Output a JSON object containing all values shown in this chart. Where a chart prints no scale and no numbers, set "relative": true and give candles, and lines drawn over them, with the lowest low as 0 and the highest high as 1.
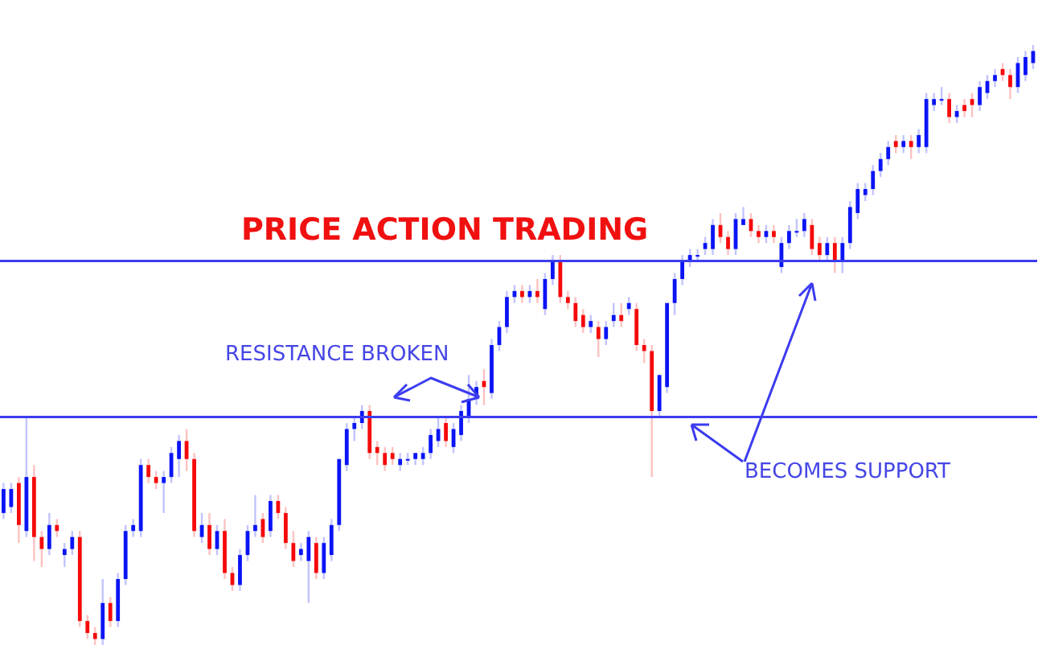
{
  "chart_data": {
    "type": "candlestick",
    "title": "PRICE ACTION TRADING",
    "relative": true,
    "tick_labels": false,
    "grid": false,
    "legend": false,
    "annotations": [
      "RESISTANCE BROKEN",
      "BECOMES SUPPORT"
    ],
    "ref_lines": [
      {
        "axis": "y",
        "value": 0.38,
        "color": "#3c3cf0"
      },
      {
        "axis": "y",
        "value": 0.64,
        "color": "#3c3cf0"
      }
    ],
    "categories": [
      null,
      null,
      null,
      null,
      null,
      null,
      null,
      null,
      null,
      null,
      null,
      null,
      null,
      null,
      null,
      null,
      null,
      null,
      null,
      null,
      null,
      null,
      null,
      null,
      null,
      null,
      null,
      null,
      null,
      null,
      null,
      null,
      null,
      null,
      null,
      null,
      null,
      null,
      null,
      null,
      null,
      null,
      null,
      null,
      null,
      null,
      null,
      null,
      null,
      null,
      null,
      null,
      null,
      null,
      null,
      null,
      null,
      null,
      null,
      null,
      null,
      null,
      null,
      null,
      null,
      null,
      null,
      null,
      null,
      null,
      null,
      null,
      null,
      null,
      null,
      null,
      null,
      null,
      null,
      null,
      null,
      null,
      null,
      null,
      null,
      null,
      null,
      null,
      null,
      null,
      null,
      null,
      null,
      null,
      null,
      null,
      null,
      null,
      null,
      null,
      null,
      null,
      null,
      null,
      null,
      null,
      null,
      null,
      null,
      null,
      null,
      null,
      null,
      null,
      null,
      null,
      null,
      null,
      null,
      null,
      null,
      null,
      null,
      null,
      null,
      null,
      null,
      null,
      null,
      null,
      null,
      null,
      null,
      null,
      null,
      null
    ],
    "ohlc": [
      [
        0.22,
        0.27,
        0.21,
        0.26
      ],
      [
        0.23,
        0.27,
        0.22,
        0.26
      ],
      [
        0.27,
        0.28,
        0.17,
        0.2
      ],
      [
        0.19,
        0.38,
        0.18,
        0.28
      ],
      [
        0.28,
        0.3,
        0.14,
        0.18
      ],
      [
        0.18,
        0.19,
        0.13,
        0.16
      ],
      [
        0.16,
        0.22,
        0.15,
        0.2
      ],
      [
        0.2,
        0.21,
        0.18,
        0.19
      ],
      [
        0.15,
        0.17,
        0.13,
        0.16
      ],
      [
        0.16,
        0.19,
        0.15,
        0.18
      ],
      [
        0.18,
        0.19,
        0.03,
        0.04
      ],
      [
        0.04,
        0.05,
        0.01,
        0.02
      ],
      [
        0.02,
        0.03,
        0.0,
        0.01
      ],
      [
        0.01,
        0.11,
        0.0,
        0.07
      ],
      [
        0.07,
        0.08,
        0.03,
        0.04
      ],
      [
        0.04,
        0.12,
        0.03,
        0.11
      ],
      [
        0.11,
        0.2,
        0.1,
        0.19
      ],
      [
        0.19,
        0.21,
        0.18,
        0.2
      ],
      [
        0.19,
        0.31,
        0.18,
        0.3
      ],
      [
        0.3,
        0.31,
        0.27,
        0.28
      ],
      [
        0.28,
        0.29,
        0.26,
        0.27
      ],
      [
        0.27,
        0.29,
        0.22,
        0.28
      ],
      [
        0.28,
        0.33,
        0.27,
        0.32
      ],
      [
        0.31,
        0.35,
        0.28,
        0.34
      ],
      [
        0.34,
        0.36,
        0.29,
        0.31
      ],
      [
        0.31,
        0.32,
        0.18,
        0.19
      ],
      [
        0.18,
        0.22,
        0.17,
        0.2
      ],
      [
        0.2,
        0.22,
        0.15,
        0.16
      ],
      [
        0.16,
        0.2,
        0.15,
        0.19
      ],
      [
        0.19,
        0.21,
        0.11,
        0.12
      ],
      [
        0.12,
        0.13,
        0.09,
        0.1
      ],
      [
        0.1,
        0.16,
        0.09,
        0.15
      ],
      [
        0.15,
        0.2,
        0.14,
        0.19
      ],
      [
        0.19,
        0.25,
        0.18,
        0.2
      ],
      [
        0.21,
        0.22,
        0.17,
        0.18
      ],
      [
        0.19,
        0.25,
        0.18,
        0.24
      ],
      [
        0.24,
        0.25,
        0.21,
        0.22
      ],
      [
        0.22,
        0.23,
        0.16,
        0.17
      ],
      [
        0.17,
        0.19,
        0.13,
        0.14
      ],
      [
        0.15,
        0.17,
        0.14,
        0.16
      ],
      [
        0.14,
        0.19,
        0.07,
        0.18
      ],
      [
        0.17,
        0.18,
        0.11,
        0.12
      ],
      [
        0.12,
        0.18,
        0.11,
        0.17
      ],
      [
        0.15,
        0.21,
        0.14,
        0.2
      ],
      [
        0.2,
        0.31,
        0.19,
        0.31
      ],
      [
        0.3,
        0.37,
        0.29,
        0.36
      ],
      [
        0.36,
        0.38,
        0.34,
        0.37
      ],
      [
        0.37,
        0.4,
        0.36,
        0.39
      ],
      [
        0.39,
        0.4,
        0.31,
        0.32
      ],
      [
        0.33,
        0.34,
        0.3,
        0.32
      ],
      [
        0.32,
        0.33,
        0.29,
        0.3
      ],
      [
        0.32,
        0.33,
        0.3,
        0.31
      ],
      [
        0.3,
        0.32,
        0.29,
        0.31
      ],
      [
        0.31,
        0.32,
        0.3,
        0.31
      ],
      [
        0.31,
        0.32,
        0.3,
        0.32
      ],
      [
        0.31,
        0.33,
        0.3,
        0.32
      ],
      [
        0.32,
        0.36,
        0.31,
        0.35
      ],
      [
        0.34,
        0.38,
        0.33,
        0.36
      ],
      [
        0.37,
        0.38,
        0.33,
        0.34
      ],
      [
        0.33,
        0.37,
        0.32,
        0.36
      ],
      [
        0.35,
        0.4,
        0.34,
        0.39
      ],
      [
        0.38,
        0.45,
        0.37,
        0.41
      ],
      [
        0.41,
        0.44,
        0.4,
        0.43
      ],
      [
        0.44,
        0.46,
        0.4,
        0.43
      ],
      [
        0.42,
        0.51,
        0.41,
        0.5
      ],
      [
        0.5,
        0.54,
        0.49,
        0.53
      ],
      [
        0.53,
        0.59,
        0.52,
        0.58
      ],
      [
        0.58,
        0.6,
        0.57,
        0.59
      ],
      [
        0.59,
        0.6,
        0.57,
        0.58
      ],
      [
        0.58,
        0.6,
        0.57,
        0.59
      ],
      [
        0.59,
        0.61,
        0.57,
        0.58
      ],
      [
        0.56,
        0.62,
        0.55,
        0.61
      ],
      [
        0.61,
        0.65,
        0.6,
        0.64
      ],
      [
        0.64,
        0.65,
        0.57,
        0.58
      ],
      [
        0.58,
        0.59,
        0.56,
        0.57
      ],
      [
        0.57,
        0.58,
        0.53,
        0.54
      ],
      [
        0.55,
        0.56,
        0.52,
        0.53
      ],
      [
        0.53,
        0.55,
        0.52,
        0.54
      ],
      [
        0.53,
        0.54,
        0.48,
        0.51
      ],
      [
        0.51,
        0.54,
        0.5,
        0.53
      ],
      [
        0.54,
        0.57,
        0.53,
        0.55
      ],
      [
        0.55,
        0.57,
        0.53,
        0.54
      ],
      [
        0.56,
        0.58,
        0.55,
        0.57
      ],
      [
        0.56,
        0.57,
        0.49,
        0.5
      ],
      [
        0.5,
        0.51,
        0.47,
        0.49
      ],
      [
        0.49,
        0.5,
        0.28,
        0.39
      ],
      [
        0.39,
        0.45,
        0.38,
        0.45
      ],
      [
        0.43,
        0.57,
        0.42,
        0.57
      ],
      [
        0.57,
        0.62,
        0.55,
        0.61
      ],
      [
        0.61,
        0.65,
        0.6,
        0.64
      ],
      [
        0.64,
        0.66,
        0.63,
        0.65
      ],
      [
        0.65,
        0.66,
        0.64,
        0.65
      ],
      [
        0.66,
        0.68,
        0.65,
        0.67
      ],
      [
        0.66,
        0.71,
        0.65,
        0.7
      ],
      [
        0.7,
        0.72,
        0.67,
        0.68
      ],
      [
        0.68,
        0.69,
        0.65,
        0.66
      ],
      [
        0.66,
        0.72,
        0.65,
        0.71
      ],
      [
        0.7,
        0.73,
        0.7,
        0.71
      ],
      [
        0.71,
        0.72,
        0.68,
        0.69
      ],
      [
        0.69,
        0.7,
        0.67,
        0.68
      ],
      [
        0.68,
        0.7,
        0.67,
        0.69
      ],
      [
        0.69,
        0.7,
        0.67,
        0.68
      ],
      [
        0.63,
        0.68,
        0.62,
        0.67
      ],
      [
        0.67,
        0.7,
        0.66,
        0.69
      ],
      [
        0.69,
        0.71,
        0.68,
        0.69
      ],
      [
        0.69,
        0.72,
        0.68,
        0.71
      ],
      [
        0.7,
        0.71,
        0.65,
        0.66
      ],
      [
        0.67,
        0.68,
        0.64,
        0.65
      ],
      [
        0.65,
        0.68,
        0.64,
        0.67
      ],
      [
        0.67,
        0.68,
        0.62,
        0.64
      ],
      [
        0.64,
        0.68,
        0.62,
        0.67
      ],
      [
        0.67,
        0.74,
        0.66,
        0.73
      ],
      [
        0.72,
        0.77,
        0.71,
        0.76
      ],
      [
        0.75,
        0.77,
        0.74,
        0.76
      ],
      [
        0.76,
        0.8,
        0.75,
        0.79
      ],
      [
        0.79,
        0.82,
        0.78,
        0.81
      ],
      [
        0.81,
        0.84,
        0.8,
        0.83
      ],
      [
        0.84,
        0.85,
        0.82,
        0.83
      ],
      [
        0.83,
        0.85,
        0.82,
        0.84
      ],
      [
        0.84,
        0.85,
        0.81,
        0.83
      ],
      [
        0.83,
        0.86,
        0.82,
        0.85
      ],
      [
        0.83,
        0.92,
        0.82,
        0.91
      ],
      [
        0.9,
        0.92,
        0.89,
        0.91
      ],
      [
        0.91,
        0.93,
        0.9,
        0.91
      ],
      [
        0.91,
        0.92,
        0.87,
        0.88
      ],
      [
        0.88,
        0.9,
        0.87,
        0.89
      ],
      [
        0.9,
        0.91,
        0.88,
        0.89
      ],
      [
        0.91,
        0.92,
        0.88,
        0.9
      ],
      [
        0.9,
        0.94,
        0.89,
        0.93
      ],
      [
        0.92,
        0.95,
        0.91,
        0.94
      ],
      [
        0.94,
        0.96,
        0.93,
        0.95
      ],
      [
        0.96,
        0.97,
        0.94,
        0.95
      ],
      [
        0.95,
        0.96,
        0.91,
        0.93
      ],
      [
        0.93,
        0.98,
        0.92,
        0.97
      ],
      [
        0.95,
        0.99,
        0.94,
        0.98
      ],
      [
        0.97,
        1.0,
        0.96,
        0.99
      ]
    ]
  }
}
